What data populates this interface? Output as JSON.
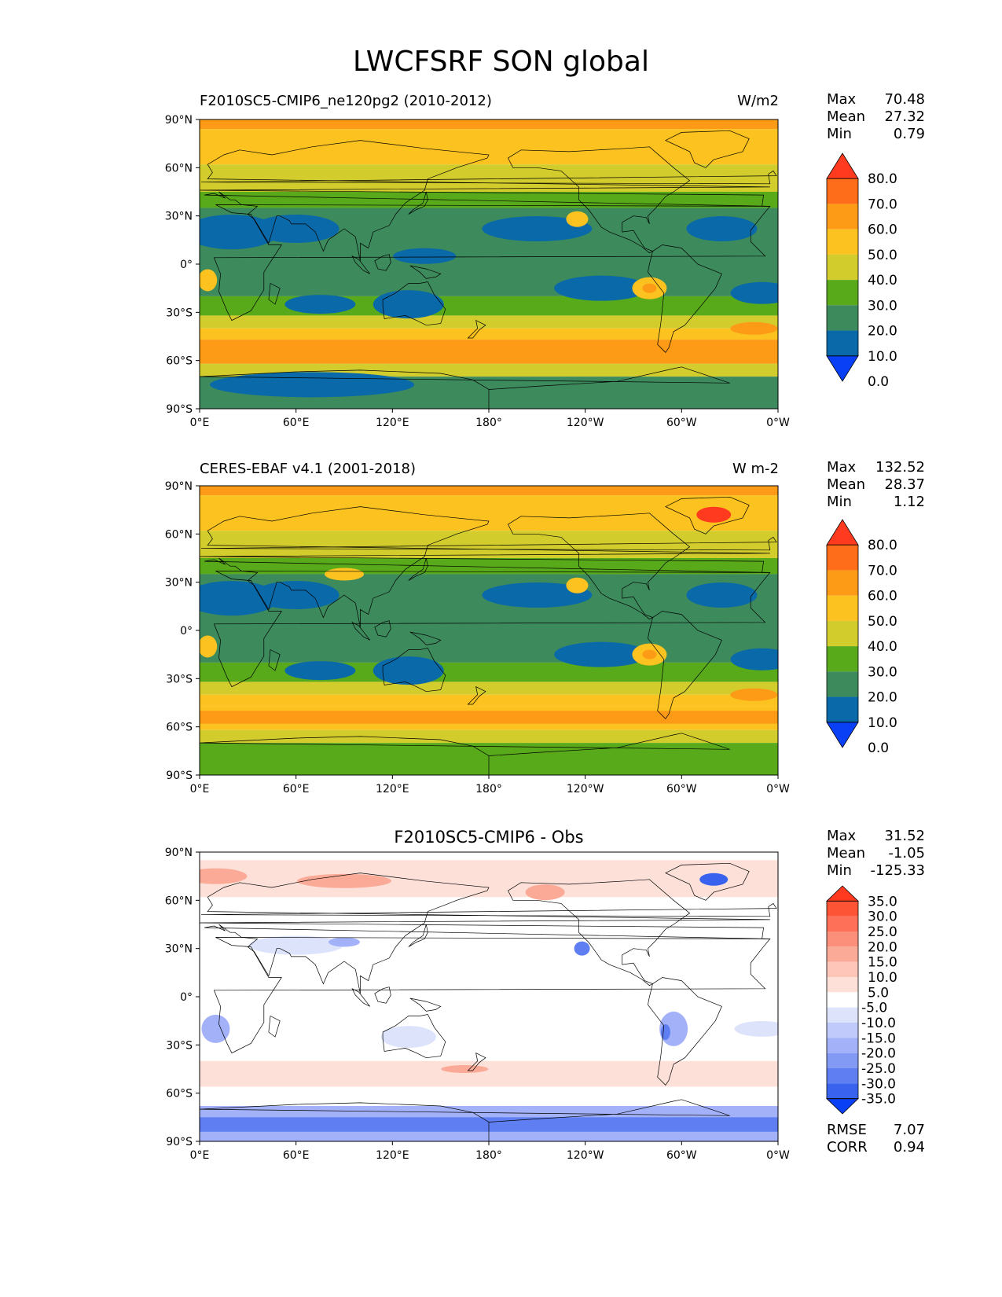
{
  "figure_title": "LWCFSRF SON global",
  "icons": {
    "colorbar_top": "triangle-extend-max",
    "colorbar_bottom": "triangle-extend-min"
  },
  "axes": {
    "lat_ticks": [
      "90°N",
      "60°N",
      "30°N",
      "0°",
      "30°S",
      "60°S",
      "90°S"
    ],
    "lon_ticks": [
      "0°E",
      "60°E",
      "120°E",
      "180°",
      "120°W",
      "60°W",
      "0°W"
    ]
  },
  "panels": [
    {
      "title_left": "F2010SC5-CMIP6_ne120pg2 (2010-2012)",
      "title_right": "W/m2",
      "stats": [
        {
          "label": "Max",
          "value": "70.48"
        },
        {
          "label": "Mean",
          "value": "27.32"
        },
        {
          "label": "Min",
          "value": "0.79"
        }
      ],
      "colorbar_labels": [
        "80.0",
        "70.0",
        "60.0",
        "50.0",
        "40.0",
        "30.0",
        "20.0",
        "10.0",
        "0.0"
      ],
      "colorbar_colors": [
        "#ff3a1e",
        "#fe6e1a",
        "#fd9a16",
        "#fcc220",
        "#d2cc2d",
        "#58aa1b",
        "#3d8a5c",
        "#0a69a8",
        "#0a40f5"
      ]
    },
    {
      "title_left": "CERES-EBAF v4.1 (2001-2018)",
      "title_right": "W m-2",
      "stats": [
        {
          "label": "Max",
          "value": "132.52"
        },
        {
          "label": "Mean",
          "value": "28.37"
        },
        {
          "label": "Min",
          "value": "1.12"
        }
      ],
      "colorbar_labels": [
        "80.0",
        "70.0",
        "60.0",
        "50.0",
        "40.0",
        "30.0",
        "20.0",
        "10.0",
        "0.0"
      ],
      "colorbar_colors": [
        "#ff3a1e",
        "#fe6e1a",
        "#fd9a16",
        "#fcc220",
        "#d2cc2d",
        "#58aa1b",
        "#3d8a5c",
        "#0a69a8",
        "#0a40f5"
      ]
    },
    {
      "title_center": "F2010SC5-CMIP6 - Obs",
      "stats": [
        {
          "label": "Max",
          "value": "31.52"
        },
        {
          "label": "Mean",
          "value": "-1.05"
        },
        {
          "label": "Min",
          "value": "-125.33"
        }
      ],
      "stats_bottom": [
        {
          "label": "RMSE",
          "value": "7.07"
        },
        {
          "label": "CORR",
          "value": "0.94"
        }
      ],
      "colorbar_labels": [
        "35.0",
        "30.0",
        "25.0",
        "20.0",
        "15.0",
        "10.0",
        "5.0",
        "-5.0",
        "-10.0",
        "-15.0",
        "-20.0",
        "-25.0",
        "-30.0",
        "-35.0"
      ],
      "colorbar_colors": [
        "#ff3a1e",
        "#fe5436",
        "#fe7058",
        "#fb8f7a",
        "#fcaa98",
        "#fdc6b8",
        "#fde1d8",
        "#ffffff",
        "#dee3fc",
        "#c0cafb",
        "#a3b1f8",
        "#839af5",
        "#5f7ef1",
        "#3962ee",
        "#0a40f5"
      ]
    }
  ],
  "map_palettes": {
    "model": {
      "pole": "#fd9a16",
      "storm": "#fcc220",
      "mid": "#d2cc2d",
      "green": "#58aa1b",
      "teal": "#3d8a5c",
      "blue": "#0a69a8",
      "hot": "#fe6e1a"
    },
    "obs": {
      "pole": "#fd9a16",
      "storm": "#fcc220",
      "mid": "#d2cc2d",
      "green": "#58aa1b",
      "teal": "#3d8a5c",
      "blue": "#0a69a8",
      "hot": "#ff3a1e"
    },
    "diff": {
      "white": "#ffffff",
      "pinkL": "#fde1d8",
      "pink": "#fcaa98",
      "red": "#fb8f7a",
      "blueL": "#dee3fc",
      "blue": "#a3b1f8",
      "blueD": "#5f7ef1",
      "blueX": "#3962ee"
    }
  }
}
